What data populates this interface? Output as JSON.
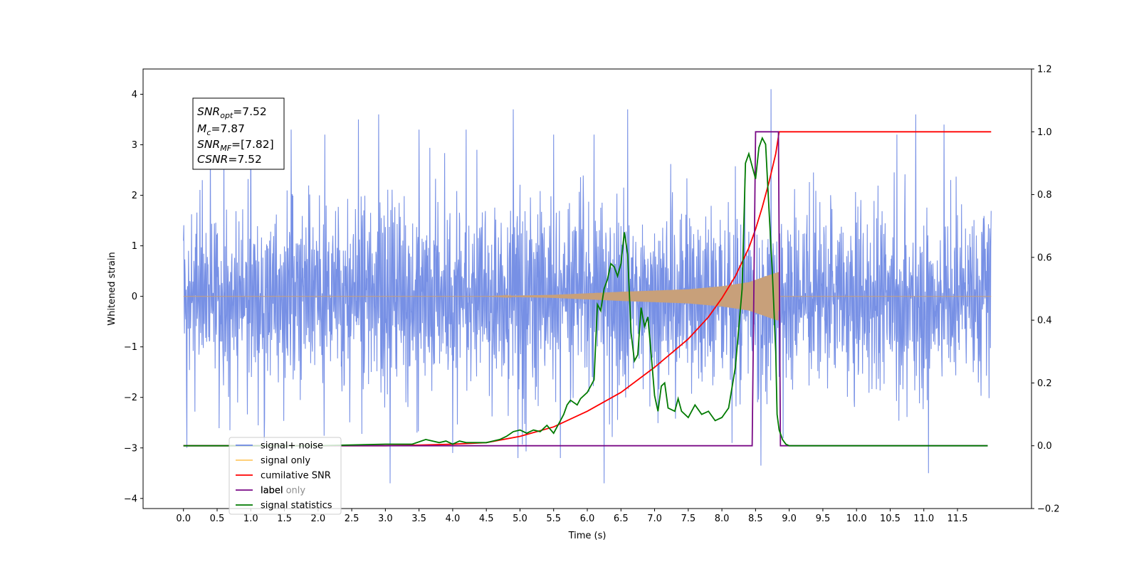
{
  "chart_data": {
    "type": "line",
    "xlabel": "Time (s)",
    "ylabel": "Whitened strain",
    "xlim": [
      -0.6,
      12.6
    ],
    "ylim_left": [
      -4.2,
      4.5
    ],
    "ylim_right": [
      -0.2,
      1.2
    ],
    "x_ticks": [
      0.0,
      0.5,
      1.0,
      1.5,
      2.0,
      2.5,
      3.0,
      3.5,
      4.0,
      4.5,
      5.0,
      5.5,
      6.0,
      6.5,
      7.0,
      7.5,
      8.0,
      8.5,
      9.0,
      9.5,
      10.0,
      10.5,
      11.0,
      11.5
    ],
    "x_tick_labels": [
      "0.0",
      "0.5",
      "1.0",
      "1.5",
      "2.0",
      "2.5",
      "3.0",
      "3.5",
      "4.0",
      "4.5",
      "5.0",
      "5.5",
      "6.0",
      "6.5",
      "7.0",
      "7.5",
      "8.0",
      "8.5",
      "9.0",
      "9.5",
      "10.0",
      "10.5",
      "11.0",
      "11.5"
    ],
    "y_left_ticks": [
      4,
      3,
      2,
      1,
      0,
      -1,
      -2,
      -3,
      -4
    ],
    "y_left_tick_labels": [
      "4",
      "3",
      "2",
      "1",
      "0",
      "−1",
      "−2",
      "−3",
      "−4"
    ],
    "y_right_ticks": [
      1.2,
      1.0,
      0.8,
      0.6,
      0.4,
      0.2,
      0.0,
      -0.2
    ],
    "y_right_tick_labels": [
      "1.2",
      "1.0",
      "0.8",
      "0.6",
      "0.4",
      "0.2",
      "0.0",
      "−0.2"
    ],
    "grid": false,
    "legend_placement": "lower-left",
    "annotation": {
      "snr_opt": {
        "label": "SNR",
        "sub": "opt",
        "value": "=7.52"
      },
      "mc": {
        "label": "M",
        "sub": "c",
        "value": "=7.87"
      },
      "snr_mf": {
        "label": "SNR",
        "sub": "MF",
        "value": "=[7.82]"
      },
      "csnr": {
        "label": "CSNR",
        "value": "=7.52"
      }
    },
    "series": [
      {
        "name": "signal+ noise",
        "color": "#6b87e3",
        "axis": "left",
        "description_type": "dense-noise",
        "envelope": [
          [
            0.0,
            2.6
          ],
          [
            1.0,
            2.8
          ],
          [
            2.0,
            2.8
          ],
          [
            3.0,
            3.0
          ],
          [
            4.0,
            3.0
          ],
          [
            5.0,
            3.1
          ],
          [
            6.0,
            2.8
          ],
          [
            7.0,
            2.8
          ],
          [
            8.0,
            2.6
          ],
          [
            8.83,
            2.9
          ],
          [
            10.0,
            2.6
          ],
          [
            11.0,
            2.7
          ],
          [
            12.0,
            2.6
          ]
        ],
        "spikes": [
          [
            0.4,
            3.0
          ],
          [
            0.6,
            3.2
          ],
          [
            1.0,
            3.6
          ],
          [
            1.6,
            3.3
          ],
          [
            2.1,
            3.2
          ],
          [
            2.6,
            3.5
          ],
          [
            2.9,
            3.6
          ],
          [
            3.5,
            3.3
          ],
          [
            4.2,
            3.3
          ],
          [
            4.9,
            3.7
          ],
          [
            5.5,
            3.2
          ],
          [
            6.1,
            3.2
          ],
          [
            6.6,
            3.7
          ],
          [
            8.73,
            4.1
          ],
          [
            10.6,
            3.2
          ],
          [
            10.88,
            3.6
          ],
          [
            11.3,
            3.4
          ],
          [
            0.05,
            -3.0
          ],
          [
            3.07,
            -3.7
          ],
          [
            4.0,
            -3.1
          ],
          [
            4.97,
            -3.2
          ],
          [
            5.6,
            -3.2
          ],
          [
            6.25,
            -3.7
          ],
          [
            8.58,
            -3.35
          ],
          [
            11.07,
            -3.5
          ],
          [
            8.15,
            -2.9
          ],
          [
            1.2,
            -2.9
          ]
        ]
      },
      {
        "name": "signal only",
        "color": "#c8a07a",
        "axis": "left",
        "description_type": "chirp",
        "amplitude_envelope": [
          [
            0.0,
            0.0
          ],
          [
            4.5,
            0.0
          ],
          [
            5.5,
            0.03
          ],
          [
            6.5,
            0.09
          ],
          [
            7.5,
            0.14
          ],
          [
            8.0,
            0.2
          ],
          [
            8.4,
            0.28
          ],
          [
            8.7,
            0.42
          ],
          [
            8.84,
            0.48
          ],
          [
            8.85,
            0.0
          ],
          [
            12.0,
            0.0
          ]
        ]
      },
      {
        "name": "cumilative SNR",
        "color": "#ff0000",
        "axis": "right",
        "x": [
          0.0,
          1.0,
          2.0,
          3.0,
          3.5,
          4.0,
          4.5,
          5.0,
          5.5,
          6.0,
          6.5,
          7.0,
          7.5,
          7.8,
          8.0,
          8.2,
          8.4,
          8.5,
          8.6,
          8.7,
          8.8,
          8.84,
          8.85,
          12.0
        ],
        "y": [
          0.0,
          0.0,
          0.0,
          0.0,
          0.002,
          0.005,
          0.01,
          0.03,
          0.06,
          0.11,
          0.17,
          0.25,
          0.34,
          0.41,
          0.47,
          0.54,
          0.63,
          0.69,
          0.76,
          0.84,
          0.93,
          0.985,
          1.0,
          1.0
        ]
      },
      {
        "name": "label",
        "color": "#7a0a86",
        "axis": "right",
        "x": [
          0.0,
          8.45,
          8.5,
          8.84,
          8.87,
          11.95
        ],
        "y": [
          0.0,
          0.0,
          1.0,
          1.0,
          0.0,
          0.0
        ]
      },
      {
        "name": "label only",
        "color": "#7a0a86",
        "axis": "right",
        "hidden_by_legend": true,
        "x": [],
        "y": []
      },
      {
        "name": "signal statistics",
        "color": "#007a00",
        "axis": "right",
        "x": [
          0.0,
          2.0,
          3.0,
          3.4,
          3.6,
          3.8,
          3.9,
          4.0,
          4.1,
          4.2,
          4.3,
          4.5,
          4.6,
          4.7,
          4.8,
          4.9,
          5.0,
          5.1,
          5.2,
          5.3,
          5.4,
          5.5,
          5.6,
          5.65,
          5.7,
          5.75,
          5.85,
          5.9,
          6.0,
          6.1,
          6.15,
          6.2,
          6.25,
          6.3,
          6.35,
          6.4,
          6.45,
          6.5,
          6.55,
          6.6,
          6.65,
          6.7,
          6.75,
          6.8,
          6.85,
          6.9,
          6.95,
          7.0,
          7.05,
          7.1,
          7.15,
          7.2,
          7.3,
          7.35,
          7.4,
          7.5,
          7.6,
          7.7,
          7.8,
          7.9,
          8.0,
          8.1,
          8.2,
          8.3,
          8.35,
          8.4,
          8.45,
          8.5,
          8.55,
          8.6,
          8.65,
          8.7,
          8.75,
          8.8,
          8.82,
          8.85,
          8.9,
          8.95,
          9.0,
          11.95
        ],
        "y": [
          0.0,
          0.0,
          0.005,
          0.005,
          0.02,
          0.01,
          0.015,
          0.005,
          0.015,
          0.01,
          0.01,
          0.01,
          0.015,
          0.02,
          0.03,
          0.045,
          0.05,
          0.04,
          0.05,
          0.045,
          0.065,
          0.04,
          0.08,
          0.1,
          0.13,
          0.145,
          0.13,
          0.15,
          0.17,
          0.21,
          0.45,
          0.43,
          0.5,
          0.53,
          0.58,
          0.57,
          0.54,
          0.58,
          0.68,
          0.61,
          0.36,
          0.27,
          0.29,
          0.44,
          0.38,
          0.41,
          0.29,
          0.16,
          0.11,
          0.19,
          0.2,
          0.12,
          0.11,
          0.15,
          0.11,
          0.09,
          0.13,
          0.1,
          0.11,
          0.08,
          0.09,
          0.12,
          0.25,
          0.5,
          0.9,
          0.93,
          0.89,
          0.85,
          0.95,
          0.98,
          0.96,
          0.75,
          0.55,
          0.3,
          0.1,
          0.05,
          0.02,
          0.005,
          0.0,
          0.0
        ]
      }
    ]
  }
}
